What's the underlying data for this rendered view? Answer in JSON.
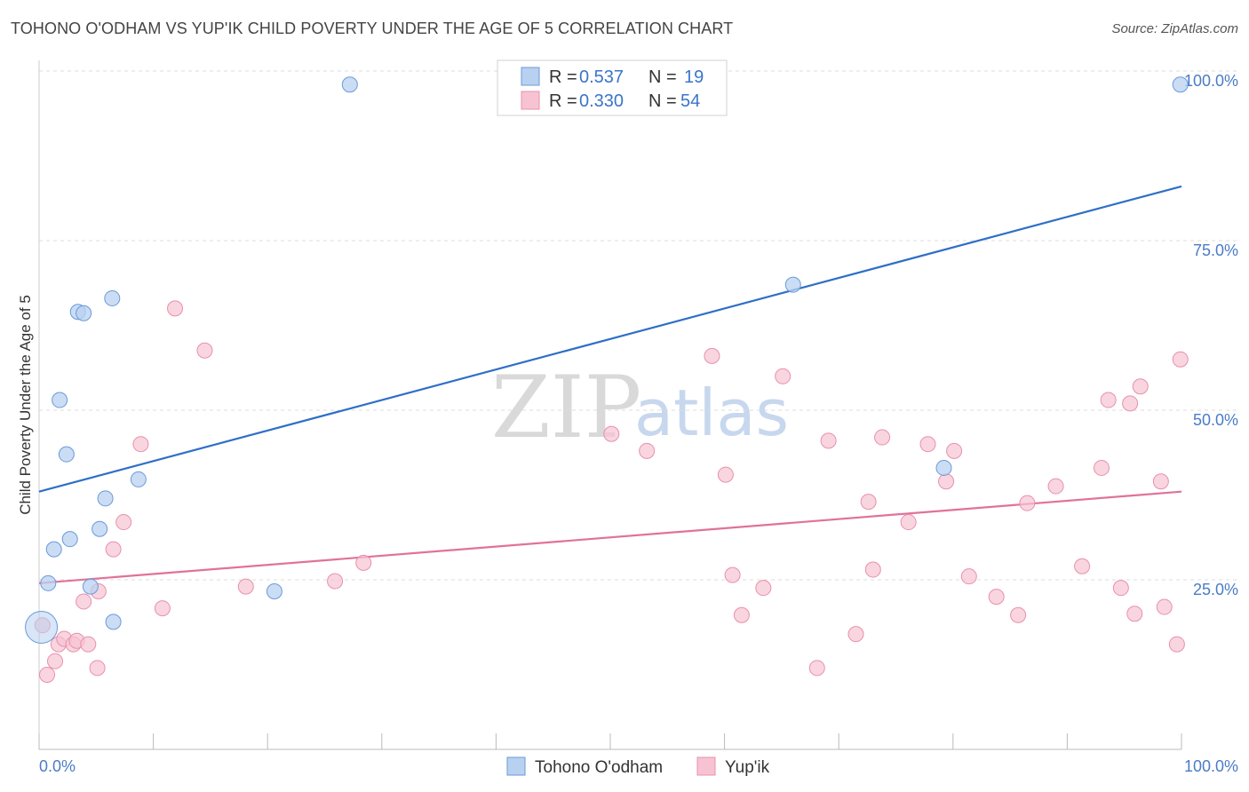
{
  "title": "TOHONO O'ODHAM VS YUP'IK CHILD POVERTY UNDER THE AGE OF 5 CORRELATION CHART",
  "source": "Source: ZipAtlas.com",
  "watermark": {
    "zip": "ZIP",
    "atlas": "atlas"
  },
  "legend": {
    "series1": {
      "r_label": "R = ",
      "r_value": "0.537",
      "n_label": "N = ",
      "n_value": "19"
    },
    "series2": {
      "r_label": "R = ",
      "r_value": "0.330",
      "n_label": "N = ",
      "n_value": "54"
    }
  },
  "colors": {
    "blue_fill": "#b8d1f1",
    "blue_stroke": "#6a9ad8",
    "blue_line": "#2e6fc7",
    "pink_fill": "#f7c3d3",
    "pink_stroke": "#e890ad",
    "pink_line": "#e0729a"
  },
  "chart_data": {
    "type": "scatter",
    "title": "TOHONO O'ODHAM VS YUP'IK CHILD POVERTY UNDER THE AGE OF 5 CORRELATION CHART",
    "xlabel": "",
    "ylabel": "Child Poverty Under the Age of 5",
    "xlim": [
      0,
      100
    ],
    "ylim": [
      0,
      100
    ],
    "x_tick_labels": [
      "0.0%",
      "100.0%"
    ],
    "y_tick_labels": [
      "25.0%",
      "50.0%",
      "75.0%",
      "100.0%"
    ],
    "y_ticks": [
      25,
      50,
      75,
      100
    ],
    "series": [
      {
        "name": "Tohono O'odham",
        "points": [
          [
            0.2,
            18.0,
            "big"
          ],
          [
            0.8,
            24.5
          ],
          [
            1.3,
            29.5
          ],
          [
            1.8,
            51.5
          ],
          [
            2.4,
            43.5
          ],
          [
            2.7,
            31.0
          ],
          [
            3.4,
            64.5
          ],
          [
            3.9,
            64.3
          ],
          [
            4.5,
            24.0
          ],
          [
            5.3,
            32.5
          ],
          [
            5.8,
            37.0
          ],
          [
            6.4,
            66.5
          ],
          [
            6.5,
            18.8
          ],
          [
            8.7,
            39.8
          ],
          [
            20.6,
            23.3
          ],
          [
            27.2,
            98.0
          ],
          [
            66.0,
            68.5
          ],
          [
            79.2,
            41.5
          ],
          [
            99.9,
            98.0
          ]
        ],
        "trend": {
          "x0": 0,
          "y0": 38.0,
          "x1": 100,
          "y1": 83.0
        }
      },
      {
        "name": "Yup'ik",
        "points": [
          [
            0.3,
            18.3
          ],
          [
            0.7,
            11.0
          ],
          [
            1.4,
            13.0
          ],
          [
            1.7,
            15.5
          ],
          [
            2.2,
            16.3
          ],
          [
            3.0,
            15.5
          ],
          [
            3.3,
            16.0
          ],
          [
            3.9,
            21.8
          ],
          [
            4.3,
            15.5
          ],
          [
            5.1,
            12.0
          ],
          [
            5.2,
            23.3
          ],
          [
            6.5,
            29.5
          ],
          [
            7.4,
            33.5
          ],
          [
            8.9,
            45.0
          ],
          [
            10.8,
            20.8
          ],
          [
            11.9,
            65.0
          ],
          [
            14.5,
            58.8
          ],
          [
            18.1,
            24.0
          ],
          [
            25.9,
            24.8
          ],
          [
            28.4,
            27.5
          ],
          [
            50.1,
            46.5
          ],
          [
            53.2,
            44.0
          ],
          [
            58.9,
            58.0
          ],
          [
            60.7,
            25.7
          ],
          [
            60.1,
            40.5
          ],
          [
            61.5,
            19.8
          ],
          [
            63.4,
            23.8
          ],
          [
            65.1,
            55.0
          ],
          [
            68.1,
            12.0
          ],
          [
            69.1,
            45.5
          ],
          [
            71.5,
            17.0
          ],
          [
            72.6,
            36.5
          ],
          [
            73.0,
            26.5
          ],
          [
            73.8,
            46.0
          ],
          [
            76.1,
            33.5
          ],
          [
            77.8,
            45.0
          ],
          [
            79.4,
            39.5
          ],
          [
            80.1,
            44.0
          ],
          [
            81.4,
            25.5
          ],
          [
            83.8,
            22.5
          ],
          [
            85.7,
            19.8
          ],
          [
            86.5,
            36.3
          ],
          [
            89.0,
            38.8
          ],
          [
            91.3,
            27.0
          ],
          [
            93.0,
            41.5
          ],
          [
            93.6,
            51.5
          ],
          [
            94.7,
            23.8
          ],
          [
            95.5,
            51.0
          ],
          [
            95.9,
            20.0
          ],
          [
            96.4,
            53.5
          ],
          [
            98.2,
            39.5
          ],
          [
            98.5,
            21.0
          ],
          [
            99.6,
            15.5
          ],
          [
            99.9,
            57.5
          ]
        ],
        "trend": {
          "x0": 0,
          "y0": 24.5,
          "x1": 100,
          "y1": 38.0
        }
      }
    ],
    "legend_position": "top-center",
    "grid": true
  },
  "bottom_legend": [
    "Tohono O'odham",
    "Yup'ik"
  ]
}
